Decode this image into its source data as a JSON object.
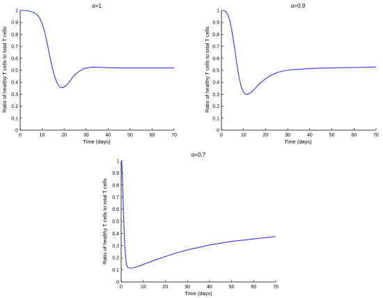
{
  "chart_data": [
    {
      "type": "line",
      "title": "α=1",
      "xlabel": "Time (days)",
      "ylabel": "Ratio of healthy T cells to total T cells",
      "xlim": [
        0,
        70
      ],
      "ylim": [
        0,
        1
      ],
      "xticks": [
        0,
        10,
        20,
        30,
        40,
        50,
        60,
        70
      ],
      "yticks": [
        0,
        0.1,
        0.2,
        0.3,
        0.4,
        0.5,
        0.6,
        0.7,
        0.8,
        0.9,
        1
      ],
      "grid": false,
      "color": "#3333ee",
      "series": [
        {
          "x": [
            0,
            2,
            4,
            6,
            8,
            9,
            10,
            11,
            12,
            13,
            14,
            15,
            16,
            17,
            18,
            19,
            20,
            21,
            22,
            23,
            24,
            25,
            26,
            28,
            30,
            33,
            36,
            40,
            45,
            50,
            55,
            60,
            65,
            70
          ],
          "values": [
            1.0,
            1.0,
            0.995,
            0.985,
            0.96,
            0.93,
            0.89,
            0.83,
            0.75,
            0.66,
            0.57,
            0.49,
            0.43,
            0.385,
            0.36,
            0.355,
            0.36,
            0.375,
            0.395,
            0.42,
            0.445,
            0.465,
            0.48,
            0.505,
            0.52,
            0.527,
            0.525,
            0.522,
            0.52,
            0.52,
            0.52,
            0.52,
            0.52,
            0.52
          ]
        }
      ]
    },
    {
      "type": "line",
      "title": "α=0.9",
      "xlabel": "Time (days)",
      "ylabel": "Ratio of healthy T cells to total T cells",
      "xlim": [
        0,
        70
      ],
      "ylim": [
        0,
        1
      ],
      "xticks": [
        0,
        10,
        20,
        30,
        40,
        50,
        60,
        70
      ],
      "yticks": [
        0,
        0.1,
        0.2,
        0.3,
        0.4,
        0.5,
        0.6,
        0.7,
        0.8,
        0.9,
        1
      ],
      "grid": false,
      "color": "#3333ee",
      "series": [
        {
          "x": [
            0,
            1,
            2,
            3,
            4,
            5,
            6,
            7,
            8,
            9,
            10,
            11,
            12,
            13,
            14,
            15,
            16,
            18,
            20,
            22,
            25,
            28,
            32,
            36,
            40,
            45,
            50,
            55,
            60,
            65,
            70
          ],
          "values": [
            1.0,
            1.0,
            0.99,
            0.96,
            0.9,
            0.8,
            0.68,
            0.55,
            0.44,
            0.36,
            0.315,
            0.3,
            0.3,
            0.31,
            0.325,
            0.345,
            0.365,
            0.4,
            0.43,
            0.455,
            0.48,
            0.495,
            0.505,
            0.51,
            0.515,
            0.518,
            0.52,
            0.522,
            0.524,
            0.526,
            0.528
          ]
        }
      ]
    },
    {
      "type": "line",
      "title": "α=0.7",
      "xlabel": "Time (days)",
      "ylabel": "Ratio of healthy T cells to total T cells",
      "xlim": [
        0,
        70
      ],
      "ylim": [
        0,
        1
      ],
      "xticks": [
        0,
        10,
        20,
        30,
        40,
        50,
        60,
        70
      ],
      "yticks": [
        0,
        0.1,
        0.2,
        0.3,
        0.4,
        0.5,
        0.6,
        0.7,
        0.8,
        0.9,
        1
      ],
      "grid": false,
      "color": "#3333ee",
      "series": [
        {
          "x": [
            0,
            0.3,
            0.6,
            1,
            1.5,
            2,
            2.5,
            3,
            4,
            5,
            6,
            8,
            10,
            13,
            16,
            20,
            25,
            30,
            35,
            40,
            45,
            50,
            55,
            60,
            65,
            70
          ],
          "values": [
            1.0,
            0.98,
            0.85,
            0.6,
            0.35,
            0.2,
            0.14,
            0.12,
            0.115,
            0.115,
            0.12,
            0.13,
            0.145,
            0.165,
            0.185,
            0.21,
            0.24,
            0.265,
            0.285,
            0.305,
            0.32,
            0.335,
            0.345,
            0.355,
            0.365,
            0.375
          ]
        }
      ]
    }
  ]
}
